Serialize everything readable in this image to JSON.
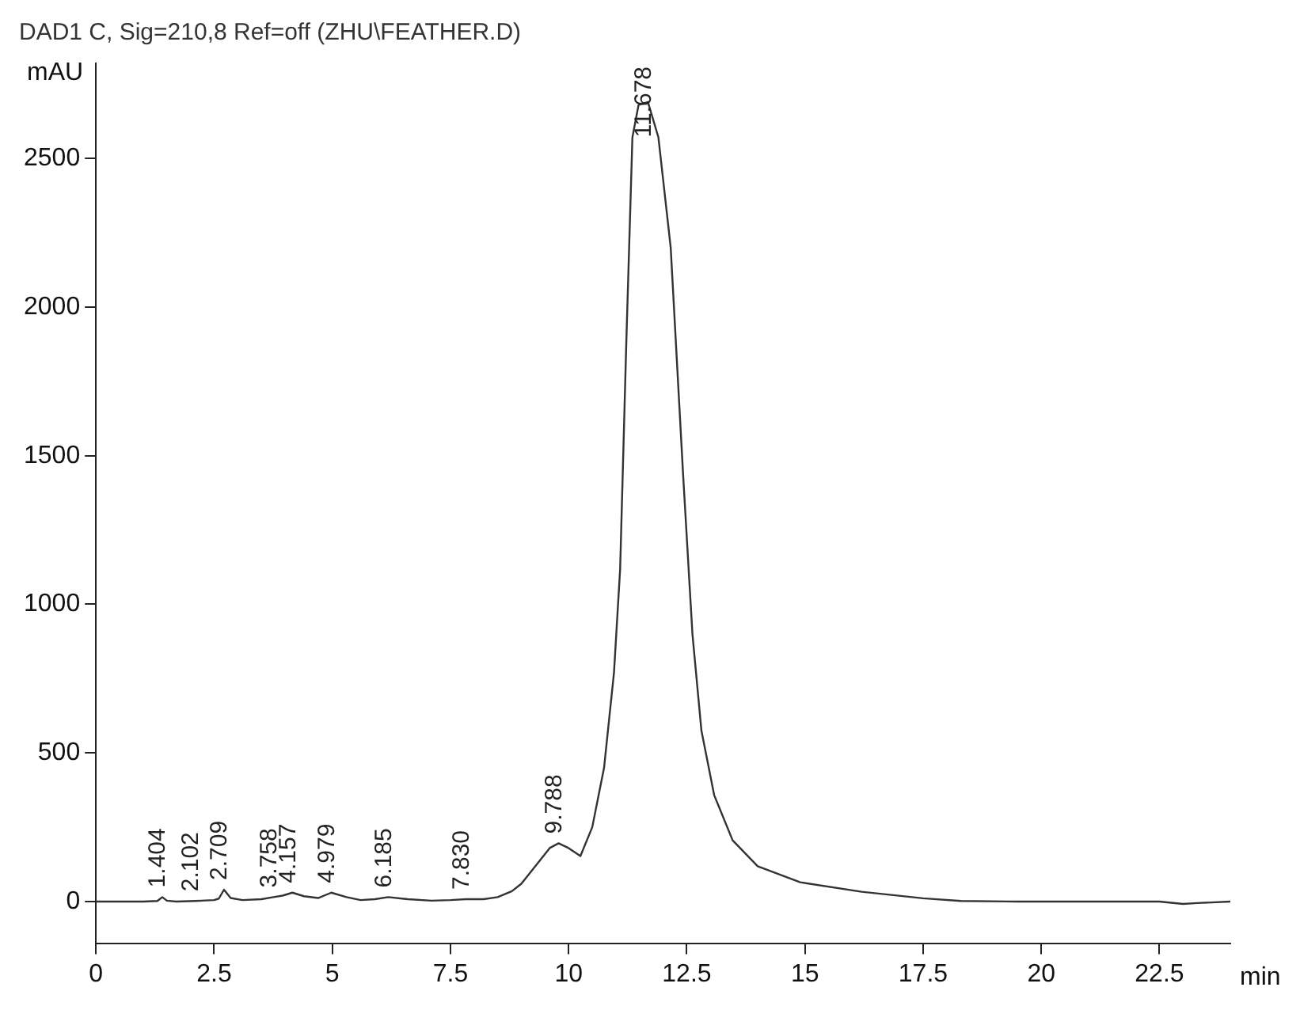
{
  "chart_data": {
    "type": "line",
    "title": "DAD1 C, Sig=210,8 Ref=off (ZHU\\FEATHER.D)",
    "xlabel": "min",
    "ylabel": "mAU",
    "xlim": [
      0,
      24
    ],
    "ylim": [
      -140,
      2820
    ],
    "xticks": [
      0,
      2.5,
      5,
      7.5,
      10,
      12.5,
      15,
      17.5,
      20,
      22.5
    ],
    "yticks": [
      0,
      500,
      1000,
      1500,
      2000,
      2500
    ],
    "grid": false,
    "legend": false,
    "marker": "none",
    "line_style": "solid",
    "series": [
      {
        "color": "#333333",
        "x": [
          0,
          1.0,
          1.3,
          1.404,
          1.5,
          1.7,
          2.1,
          2.5,
          2.6,
          2.709,
          2.85,
          3.1,
          3.5,
          3.758,
          3.95,
          4.157,
          4.4,
          4.7,
          4.979,
          5.3,
          5.6,
          5.9,
          6.185,
          6.6,
          7.1,
          7.5,
          7.83,
          8.2,
          8.5,
          8.8,
          9.0,
          9.2,
          9.4,
          9.6,
          9.788,
          10.0,
          10.25,
          10.5,
          10.75,
          10.96,
          11.09,
          11.22,
          11.35,
          11.48,
          11.678,
          11.9,
          12.16,
          12.42,
          12.62,
          12.81,
          13.08,
          13.47,
          14.0,
          14.9,
          16.2,
          17.5,
          18.3,
          19.5,
          21.0,
          22.5,
          23.0,
          23.3,
          24.0
        ],
        "values": [
          0,
          0,
          2,
          15,
          3,
          0,
          2,
          5,
          10,
          40,
          12,
          5,
          8,
          15,
          20,
          30,
          18,
          12,
          30,
          15,
          5,
          8,
          15,
          8,
          3,
          5,
          8,
          8,
          15,
          35,
          60,
          100,
          140,
          180,
          196,
          180,
          153,
          250,
          450,
          770,
          1118,
          1877,
          2571,
          2680,
          2690,
          2571,
          2200,
          1443,
          900,
          575,
          358,
          206,
          119,
          65,
          33,
          11,
          2,
          0,
          0,
          0,
          -8,
          -5,
          0
        ]
      }
    ],
    "annotations": [
      {
        "text": "1.404",
        "x": 1.404,
        "y": 15
      },
      {
        "text": "2.102",
        "x": 2.102,
        "y": 2
      },
      {
        "text": "2.709",
        "x": 2.709,
        "y": 40
      },
      {
        "text": "3.758",
        "x": 3.758,
        "y": 15
      },
      {
        "text": "4.157",
        "x": 4.157,
        "y": 30
      },
      {
        "text": "4.979",
        "x": 4.979,
        "y": 30
      },
      {
        "text": "6.185",
        "x": 6.185,
        "y": 15
      },
      {
        "text": "7.830",
        "x": 7.83,
        "y": 8
      },
      {
        "text": "9.788",
        "x": 9.788,
        "y": 196
      },
      {
        "text": "11.678",
        "x": 11.678,
        "y": 2690
      }
    ]
  }
}
